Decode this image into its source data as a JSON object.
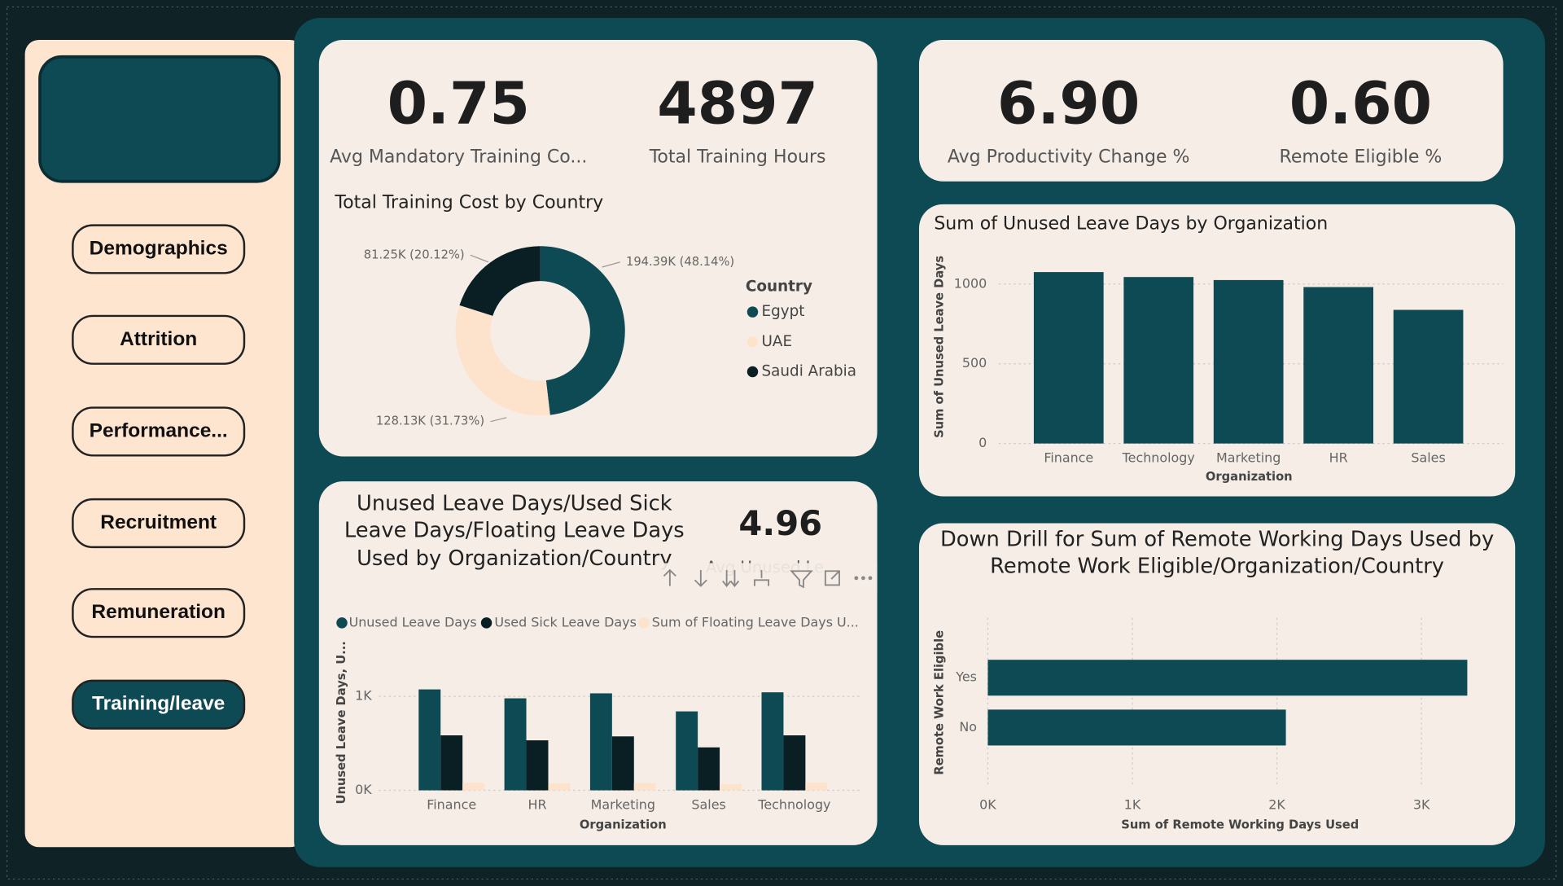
{
  "nav": {
    "items": [
      "Demographics",
      "Attrition",
      "Performance...",
      "Recruitment",
      "Remuneration",
      "Training/leave"
    ],
    "active": 5
  },
  "kpis": [
    {
      "value": "0.75",
      "label": "Avg Mandatory Training Co..."
    },
    {
      "value": "4897",
      "label": "Total Training Hours"
    },
    {
      "value": "6.90",
      "label": "Avg Productivity Change %"
    },
    {
      "value": "0.60",
      "label": "Remote Eligible %"
    },
    {
      "value": "4.96",
      "label": "Avg Unused Le..."
    }
  ],
  "chart_data": [
    {
      "type": "donut",
      "title": "Total Training Cost by Country",
      "legend_title": "Country",
      "categories": [
        "Egypt",
        "UAE",
        "Saudi Arabia"
      ],
      "values": [
        194390,
        128130,
        81250
      ],
      "value_labels": [
        "194.39K (48.14%)",
        "128.13K (31.73%)",
        "81.25K (20.12%)"
      ],
      "colors": [
        "#0e4a53",
        "#fde3cc",
        "#0a1f24"
      ]
    },
    {
      "type": "bar",
      "title": "Sum of Unused Leave Days by Organization",
      "x_label": "Organization",
      "y_label": "Sum of Unused Leave Days",
      "categories": [
        "Finance",
        "Technology",
        "Marketing",
        "HR",
        "Sales"
      ],
      "values": [
        1075,
        1044,
        1025,
        981,
        838
      ],
      "color": "#0e4a53",
      "ylim": [
        0,
        1100
      ],
      "yticks": [
        0,
        500,
        1000
      ],
      "grid": true
    },
    {
      "type": "grouped_bar",
      "title": "Unused Leave Days/Used Sick Leave Days/Floating Leave Days Used by Organization/Country",
      "x_label": "Organization",
      "y_label": "Unused Leave Days, U...",
      "categories": [
        "Finance",
        "HR",
        "Marketing",
        "Sales",
        "Technology"
      ],
      "series": [
        {
          "name": "Unused Leave Days",
          "color": "#0e4a53",
          "values": [
            1074,
            979,
            1032,
            840,
            1043
          ]
        },
        {
          "name": "Used Sick Leave Days",
          "color": "#0a1f24",
          "values": [
            585,
            532,
            574,
            457,
            585
          ]
        },
        {
          "name": "Sum of Floating Leave Days U...",
          "color": "#fde3cc",
          "values": [
            80,
            75,
            78,
            65,
            80
          ]
        }
      ],
      "ylim": [
        0,
        1400
      ],
      "yticks": [
        {
          "value": 0,
          "label": "0K"
        },
        {
          "value": 1000,
          "label": "1K"
        }
      ],
      "grid": true
    },
    {
      "type": "hbar",
      "title": "Down Drill for Sum of Remote Working Days Used by Remote Work Eligible/Organization/Country",
      "x_label": "Sum of Remote Working Days Used",
      "y_label": "Remote Work Eligible",
      "categories": [
        "Yes",
        "No"
      ],
      "values": [
        3317,
        2062
      ],
      "color": "#0e4a53",
      "xlim": [
        0,
        3400
      ],
      "xticks": [
        {
          "value": 0,
          "label": "0K"
        },
        {
          "value": 1000,
          "label": "1K"
        },
        {
          "value": 2000,
          "label": "2K"
        },
        {
          "value": 3000,
          "label": "3K"
        }
      ],
      "grid": true
    }
  ]
}
